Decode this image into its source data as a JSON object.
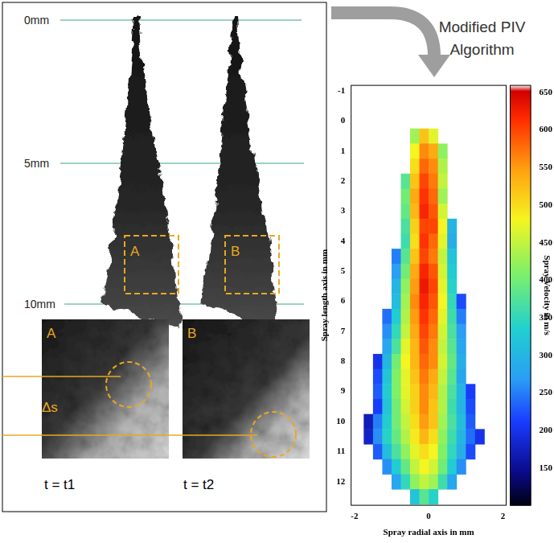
{
  "left_panel": {
    "scale_labels": [
      "0mm",
      "5mm",
      "10mm"
    ],
    "frames": [
      "A",
      "B"
    ],
    "detail_labels": [
      "A",
      "B"
    ],
    "displacement_label": "Δs",
    "times": [
      "t = t1",
      "t = t2"
    ]
  },
  "arrow_label": "Modified PIV Algorithm",
  "chart_data": {
    "type": "heatmap",
    "x_label": "Spray radial axis in mm",
    "y_label": "Spray length axis in mm",
    "xlim": [
      -2.1,
      2.1
    ],
    "xticks": [
      -2,
      0,
      2
    ],
    "ylim": [
      12.8,
      -1.2
    ],
    "yticks": [
      -1,
      0,
      1,
      2,
      3,
      4,
      5,
      6,
      7,
      8,
      9,
      10,
      11,
      12
    ],
    "grid": false,
    "cells": {
      "x": [
        -1.625,
        -1.375,
        -1.125,
        -0.875,
        -0.625,
        -0.375,
        -0.125,
        0.125,
        0.375,
        0.625,
        0.875,
        1.125,
        1.375
      ],
      "y": [
        0.5,
        1.0,
        1.5,
        2.0,
        2.5,
        3.0,
        3.5,
        4.0,
        4.5,
        5.0,
        5.5,
        6.0,
        6.5,
        7.0,
        7.5,
        8.0,
        8.5,
        9.0,
        9.5,
        10.0,
        10.5,
        11.0,
        11.5,
        12.0,
        12.5
      ],
      "values": [
        [
          null,
          null,
          null,
          null,
          null,
          430,
          520,
          470,
          null,
          null,
          null,
          null,
          null
        ],
        [
          null,
          null,
          null,
          null,
          null,
          480,
          560,
          540,
          420,
          null,
          null,
          null,
          null
        ],
        [
          null,
          null,
          null,
          null,
          null,
          500,
          580,
          560,
          440,
          null,
          null,
          null,
          null
        ],
        [
          null,
          null,
          null,
          null,
          380,
          520,
          600,
          570,
          450,
          null,
          null,
          null,
          null
        ],
        [
          null,
          null,
          null,
          null,
          400,
          540,
          610,
          580,
          430,
          null,
          null,
          null,
          null
        ],
        [
          null,
          null,
          null,
          null,
          390,
          530,
          620,
          590,
          460,
          null,
          null,
          null,
          null
        ],
        [
          null,
          null,
          null,
          null,
          370,
          510,
          600,
          600,
          480,
          300,
          null,
          null,
          null
        ],
        [
          null,
          null,
          null,
          null,
          360,
          500,
          610,
          580,
          470,
          290,
          null,
          null,
          null
        ],
        [
          null,
          null,
          null,
          250,
          380,
          520,
          600,
          570,
          450,
          320,
          null,
          null,
          null
        ],
        [
          null,
          null,
          null,
          270,
          400,
          540,
          620,
          590,
          460,
          330,
          null,
          null,
          null
        ],
        [
          null,
          null,
          null,
          300,
          420,
          550,
          630,
          600,
          470,
          340,
          null,
          null,
          null
        ],
        [
          null,
          null,
          null,
          310,
          430,
          560,
          620,
          590,
          480,
          350,
          220,
          null,
          null
        ],
        [
          null,
          null,
          240,
          330,
          440,
          550,
          610,
          580,
          470,
          360,
          250,
          null,
          null
        ],
        [
          null,
          null,
          260,
          350,
          450,
          540,
          600,
          570,
          460,
          370,
          270,
          null,
          null
        ],
        [
          null,
          null,
          280,
          370,
          470,
          530,
          590,
          560,
          450,
          380,
          280,
          null,
          null
        ],
        [
          null,
          200,
          300,
          400,
          480,
          530,
          580,
          560,
          460,
          390,
          290,
          null,
          null
        ],
        [
          null,
          220,
          320,
          410,
          470,
          520,
          570,
          540,
          450,
          380,
          280,
          null,
          null
        ],
        [
          null,
          230,
          330,
          410,
          470,
          510,
          560,
          530,
          440,
          370,
          300,
          210,
          null
        ],
        [
          null,
          210,
          320,
          400,
          460,
          510,
          560,
          520,
          440,
          360,
          300,
          220,
          null
        ],
        [
          170,
          250,
          330,
          400,
          450,
          500,
          550,
          520,
          430,
          370,
          310,
          230,
          null
        ],
        [
          180,
          260,
          340,
          390,
          440,
          490,
          530,
          500,
          420,
          360,
          300,
          240,
          200
        ],
        [
          null,
          230,
          310,
          370,
          420,
          470,
          500,
          480,
          410,
          350,
          290,
          220,
          null
        ],
        [
          null,
          null,
          260,
          330,
          390,
          450,
          480,
          460,
          400,
          330,
          260,
          null,
          null
        ],
        [
          null,
          null,
          null,
          280,
          350,
          420,
          450,
          430,
          360,
          280,
          null,
          null,
          null
        ],
        [
          null,
          null,
          null,
          null,
          null,
          320,
          380,
          340,
          null,
          null,
          null,
          null,
          null
        ]
      ]
    },
    "colorbar": {
      "label": "Spray Velocity in m/s",
      "range": [
        100,
        660
      ],
      "ticks": [
        150,
        200,
        250,
        300,
        350,
        400,
        450,
        500,
        550,
        600,
        650
      ]
    }
  }
}
